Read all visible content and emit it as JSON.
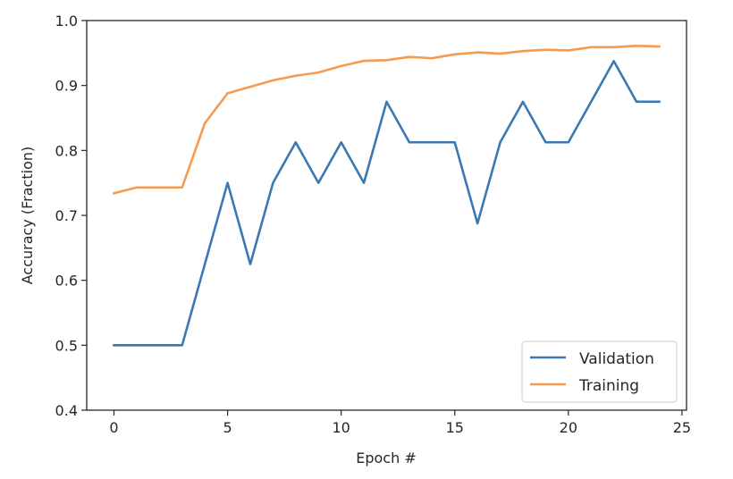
{
  "chart_data": {
    "type": "line",
    "title": "",
    "xlabel": "Epoch #",
    "ylabel": "Accuracy (Fraction)",
    "xlim": [
      -1.2,
      25.2
    ],
    "ylim": [
      0.4,
      1.0
    ],
    "xticks": [
      0,
      5,
      10,
      15,
      20,
      25
    ],
    "yticks": [
      0.4,
      0.5,
      0.6,
      0.7,
      0.8,
      0.9,
      1.0
    ],
    "xtick_labels": [
      "0",
      "5",
      "10",
      "15",
      "20",
      "25"
    ],
    "ytick_labels": [
      "0.4",
      "0.5",
      "0.6",
      "0.7",
      "0.8",
      "0.9",
      "1.0"
    ],
    "grid": false,
    "legend_position": "lower-right",
    "x": [
      0,
      1,
      2,
      3,
      4,
      5,
      6,
      7,
      8,
      9,
      10,
      11,
      12,
      13,
      14,
      15,
      16,
      17,
      18,
      19,
      20,
      21,
      22,
      23,
      24
    ],
    "series": [
      {
        "name": "Validation",
        "color": "#3a78b4",
        "values": [
          0.5,
          0.5,
          0.5,
          0.5,
          0.625,
          0.75,
          0.625,
          0.75,
          0.8125,
          0.75,
          0.8125,
          0.75,
          0.875,
          0.8125,
          0.8125,
          0.8125,
          0.6875,
          0.8125,
          0.875,
          0.8125,
          0.8125,
          0.875,
          0.9375,
          0.875,
          0.875
        ]
      },
      {
        "name": "Training",
        "color": "#f59a4e",
        "values": [
          0.734,
          0.743,
          0.743,
          0.743,
          0.842,
          0.888,
          0.898,
          0.908,
          0.915,
          0.92,
          0.93,
          0.938,
          0.939,
          0.944,
          0.942,
          0.948,
          0.951,
          0.949,
          0.953,
          0.955,
          0.954,
          0.959,
          0.959,
          0.961,
          0.96
        ]
      }
    ]
  }
}
